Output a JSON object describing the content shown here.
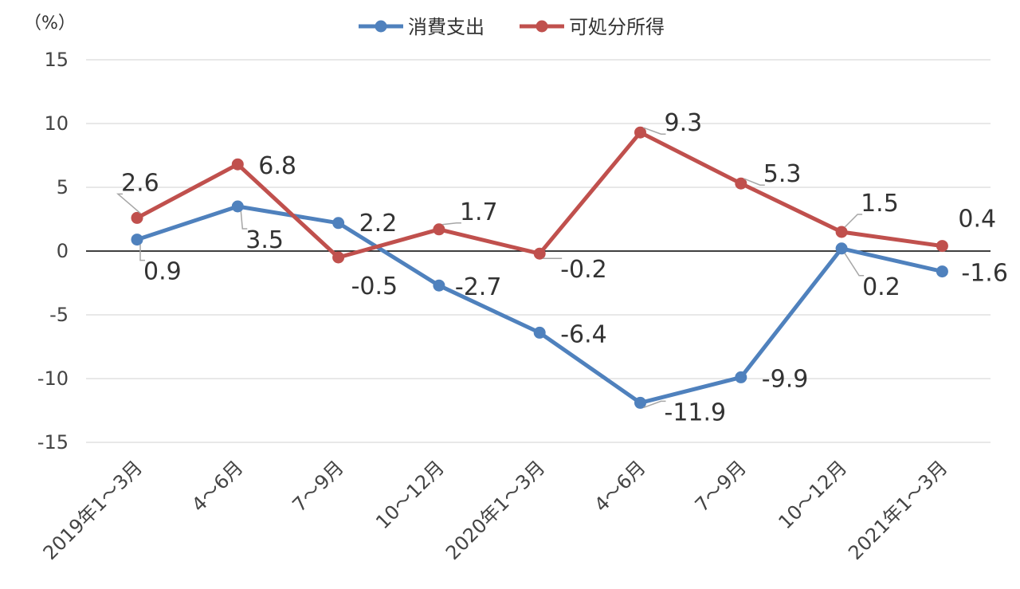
{
  "chart_data": {
    "type": "line",
    "unit_label": "（%）",
    "categories": [
      "2019年1～3月",
      "4～6月",
      "7～9月",
      "10～12月",
      "2020年1～3月",
      "4～6月",
      "7～9月",
      "10～12月",
      "2021年1～3月"
    ],
    "ylim": [
      -15,
      15
    ],
    "yticks": [
      15,
      10,
      5,
      0,
      -5,
      -10,
      -15
    ],
    "ytick_labels": [
      "15",
      "10",
      "5",
      "0",
      "-5",
      "-10",
      "-15"
    ],
    "grid": true,
    "legend_position": "top-center",
    "series": [
      {
        "name": "消費支出",
        "color": "#4f81bd",
        "values": [
          0.9,
          3.5,
          2.2,
          -2.7,
          -6.4,
          -11.9,
          -9.9,
          0.2,
          -1.6
        ],
        "labels": [
          "0.9",
          "3.5",
          "2.2",
          "-2.7",
          "-6.4",
          "-11.9",
          "-9.9",
          "0.2",
          "-1.6"
        ]
      },
      {
        "name": "可処分所得",
        "color": "#c0504d",
        "values": [
          2.6,
          6.8,
          -0.5,
          1.7,
          -0.2,
          9.3,
          5.3,
          1.5,
          0.4
        ],
        "labels": [
          "2.6",
          "6.8",
          "-0.5",
          "1.7",
          "-0.2",
          "9.3",
          "5.3",
          "1.5",
          "0.4"
        ]
      }
    ]
  }
}
